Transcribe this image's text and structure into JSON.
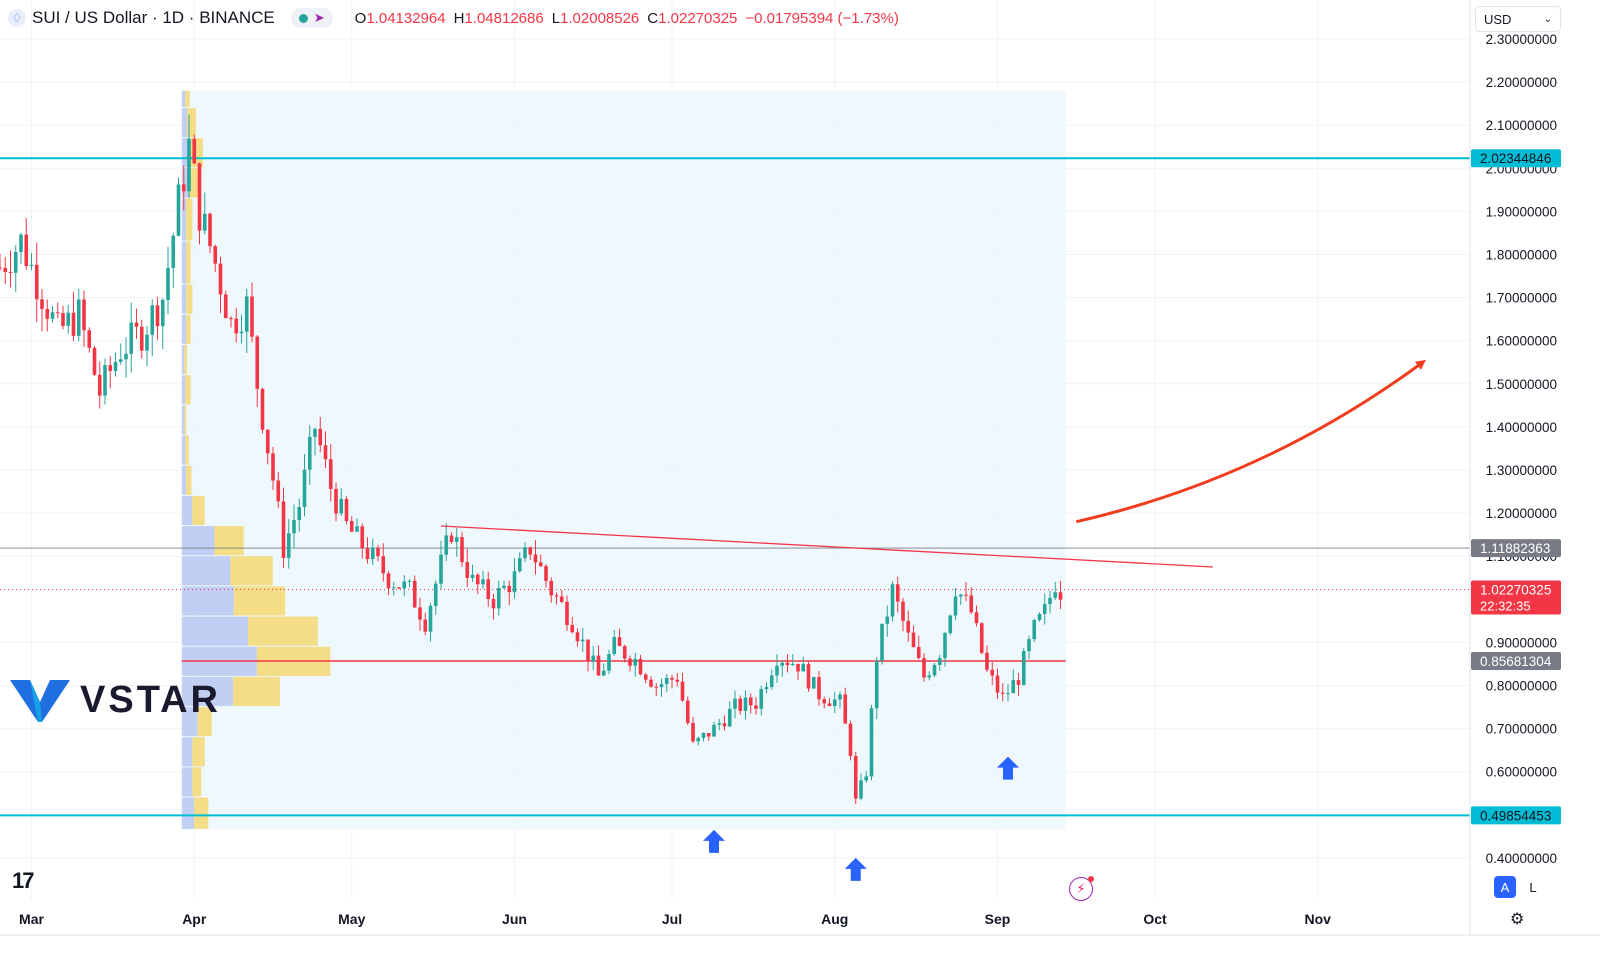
{
  "header": {
    "symbol_icon": "sui-droplet-icon",
    "symbol": "SUI / US Dollar · 1D · BINANCE",
    "o_label": "O",
    "o": "1.04132964",
    "h_label": "H",
    "h": "1.04812686",
    "l_label": "L",
    "l": "1.02008526",
    "c_label": "C",
    "c": "1.02270325",
    "change": "−0.01795394 (−1.73%)"
  },
  "currency": {
    "value": "USD",
    "icon": "chevron-down-icon"
  },
  "brand": {
    "name": "VSTAR",
    "logo_icon": "vstar-v-logo",
    "platform_icon": "tradingview-logo"
  },
  "scale_buttons": [
    "A",
    "L"
  ],
  "colors": {
    "up": "#26a69a",
    "down": "#f23645",
    "level": "#00bcd4",
    "poc": "#f23645",
    "range_bg": "#eaf5fb",
    "vp_up": "#b9c8f2",
    "vp_down": "#f4d97a",
    "arrow": "#2962ff",
    "target": "#f23c1e"
  },
  "chart_data": {
    "type": "candlestick",
    "title": "",
    "xlabel": "",
    "ylabel": "",
    "ylim": [
      0.35,
      2.32
    ],
    "price_ticks": [
      "2.30000000",
      "2.20000000",
      "2.10000000",
      "2.00000000",
      "1.90000000",
      "1.80000000",
      "1.70000000",
      "1.60000000",
      "1.50000000",
      "1.40000000",
      "1.30000000",
      "1.20000000",
      "1.10000000",
      "0.90000000",
      "0.80000000",
      "0.70000000",
      "0.60000000",
      "0.40000000"
    ],
    "tick_values": [
      2.3,
      2.2,
      2.1,
      2.0,
      1.9,
      1.8,
      1.7,
      1.6,
      1.5,
      1.4,
      1.3,
      1.2,
      1.1,
      0.9,
      0.8,
      0.7,
      0.6,
      0.4
    ],
    "months": [
      {
        "label": "Mar",
        "date": "2024-03-01"
      },
      {
        "label": "Apr",
        "date": "2024-04-01"
      },
      {
        "label": "May",
        "date": "2024-05-01"
      },
      {
        "label": "Jun",
        "date": "2024-06-01"
      },
      {
        "label": "Jul",
        "date": "2024-07-01"
      },
      {
        "label": "Aug",
        "date": "2024-08-01"
      },
      {
        "label": "Sep",
        "date": "2024-09-01"
      },
      {
        "label": "Oct",
        "date": "2024-10-01"
      },
      {
        "label": "Nov",
        "date": "2024-11-01"
      }
    ],
    "x_range": [
      "2024-02-24",
      "2024-11-30"
    ],
    "price_path": [
      [
        "2024-02-24",
        1.77
      ],
      [
        "2024-02-28",
        1.83
      ],
      [
        "2024-03-02",
        1.74
      ],
      [
        "2024-03-06",
        1.62
      ],
      [
        "2024-03-10",
        1.66
      ],
      [
        "2024-03-14",
        1.48
      ],
      [
        "2024-03-18",
        1.58
      ],
      [
        "2024-03-22",
        1.62
      ],
      [
        "2024-03-26",
        1.7
      ],
      [
        "2024-03-29",
        1.92
      ],
      [
        "2024-03-31",
        2.05
      ],
      [
        "2024-04-02",
        1.9
      ],
      [
        "2024-04-05",
        1.78
      ],
      [
        "2024-04-08",
        1.64
      ],
      [
        "2024-04-11",
        1.68
      ],
      [
        "2024-04-13",
        1.5
      ],
      [
        "2024-04-16",
        1.28
      ],
      [
        "2024-04-18",
        1.12
      ],
      [
        "2024-04-21",
        1.22
      ],
      [
        "2024-04-24",
        1.4
      ],
      [
        "2024-04-27",
        1.26
      ],
      [
        "2024-04-30",
        1.17
      ],
      [
        "2024-05-04",
        1.11
      ],
      [
        "2024-05-08",
        1.05
      ],
      [
        "2024-05-12",
        1.02
      ],
      [
        "2024-05-15",
        0.95
      ],
      [
        "2024-05-18",
        1.08
      ],
      [
        "2024-05-20",
        1.16
      ],
      [
        "2024-05-24",
        1.04
      ],
      [
        "2024-05-28",
        1.0
      ],
      [
        "2024-06-01",
        1.05
      ],
      [
        "2024-06-04",
        1.12
      ],
      [
        "2024-06-08",
        1.02
      ],
      [
        "2024-06-12",
        0.95
      ],
      [
        "2024-06-17",
        0.82
      ],
      [
        "2024-06-20",
        0.89
      ],
      [
        "2024-06-24",
        0.86
      ],
      [
        "2024-06-28",
        0.8
      ],
      [
        "2024-07-02",
        0.82
      ],
      [
        "2024-07-05",
        0.66
      ],
      [
        "2024-07-09",
        0.7
      ],
      [
        "2024-07-13",
        0.75
      ],
      [
        "2024-07-17",
        0.76
      ],
      [
        "2024-07-21",
        0.87
      ],
      [
        "2024-07-25",
        0.85
      ],
      [
        "2024-07-29",
        0.78
      ],
      [
        "2024-08-02",
        0.76
      ],
      [
        "2024-08-04",
        0.65
      ],
      [
        "2024-08-05",
        0.53
      ],
      [
        "2024-08-07",
        0.6
      ],
      [
        "2024-08-09",
        0.87
      ],
      [
        "2024-08-12",
        1.02
      ],
      [
        "2024-08-15",
        0.91
      ],
      [
        "2024-08-18",
        0.82
      ],
      [
        "2024-08-21",
        0.88
      ],
      [
        "2024-08-24",
        1.03
      ],
      [
        "2024-08-27",
        0.97
      ],
      [
        "2024-08-30",
        0.83
      ],
      [
        "2024-09-02",
        0.77
      ],
      [
        "2024-09-05",
        0.82
      ],
      [
        "2024-09-08",
        0.93
      ],
      [
        "2024-09-10",
        0.97
      ],
      [
        "2024-09-12",
        1.04
      ],
      [
        "2024-09-13",
        1.02
      ]
    ],
    "levels": [
      {
        "price": 2.02344846,
        "label": "2.02344846",
        "style": "level"
      },
      {
        "price": 1.11882363,
        "label": "1.11882363",
        "style": "thin"
      },
      {
        "price": 1.02270325,
        "label": "1.02270325",
        "sublabel": "22:32:35",
        "style": "last"
      },
      {
        "price": 0.85681304,
        "label": "0.85681304",
        "style": "poc"
      },
      {
        "price": 0.49854453,
        "label": "0.49854453",
        "style": "level"
      }
    ],
    "trendline": {
      "from": [
        "2024-05-18",
        1.17
      ],
      "to": [
        "2024-10-12",
        1.075
      ]
    },
    "range_box": {
      "from": "2024-03-30",
      "to": "2024-09-14",
      "top": 2.18,
      "bottom": 0.465
    },
    "volume_profile": {
      "bins": [
        {
          "lo": 2.14,
          "hi": 2.18,
          "up": 0.04,
          "down": 0.05
        },
        {
          "lo": 2.07,
          "hi": 2.14,
          "up": 0.06,
          "down": 0.1
        },
        {
          "lo": 2.0,
          "hi": 2.07,
          "up": 0.1,
          "down": 0.14
        },
        {
          "lo": 1.93,
          "hi": 2.0,
          "up": 0.08,
          "down": 0.12
        },
        {
          "lo": 1.83,
          "hi": 1.93,
          "up": 0.05,
          "down": 0.07
        },
        {
          "lo": 1.73,
          "hi": 1.83,
          "up": 0.05,
          "down": 0.05
        },
        {
          "lo": 1.66,
          "hi": 1.73,
          "up": 0.05,
          "down": 0.07
        },
        {
          "lo": 1.59,
          "hi": 1.66,
          "up": 0.05,
          "down": 0.05
        },
        {
          "lo": 1.52,
          "hi": 1.59,
          "up": 0.03,
          "down": 0.03
        },
        {
          "lo": 1.45,
          "hi": 1.52,
          "up": 0.04,
          "down": 0.06
        },
        {
          "lo": 1.38,
          "hi": 1.45,
          "up": 0.03,
          "down": 0.02
        },
        {
          "lo": 1.31,
          "hi": 1.38,
          "up": 0.04,
          "down": 0.04
        },
        {
          "lo": 1.24,
          "hi": 1.31,
          "up": 0.05,
          "down": 0.06
        },
        {
          "lo": 1.17,
          "hi": 1.24,
          "up": 0.12,
          "down": 0.14
        },
        {
          "lo": 1.1,
          "hi": 1.17,
          "up": 0.37,
          "down": 0.33
        },
        {
          "lo": 1.03,
          "hi": 1.1,
          "up": 0.55,
          "down": 0.48
        },
        {
          "lo": 0.96,
          "hi": 1.03,
          "up": 0.59,
          "down": 0.58
        },
        {
          "lo": 0.89,
          "hi": 0.96,
          "up": 0.75,
          "down": 0.79
        },
        {
          "lo": 0.82,
          "hi": 0.89,
          "up": 0.85,
          "down": 0.83
        },
        {
          "lo": 0.75,
          "hi": 0.82,
          "up": 0.58,
          "down": 0.53
        },
        {
          "lo": 0.68,
          "hi": 0.75,
          "up": 0.18,
          "down": 0.16
        },
        {
          "lo": 0.61,
          "hi": 0.68,
          "up": 0.12,
          "down": 0.14
        },
        {
          "lo": 0.54,
          "hi": 0.61,
          "up": 0.12,
          "down": 0.1
        },
        {
          "lo": 0.465,
          "hi": 0.54,
          "up": 0.14,
          "down": 0.16
        }
      ]
    },
    "markers": [
      {
        "date": "2024-07-09",
        "price": 0.465,
        "type": "up-arrow"
      },
      {
        "date": "2024-08-05",
        "price": 0.4,
        "type": "up-arrow"
      },
      {
        "date": "2024-09-03",
        "price": 0.635,
        "type": "up-arrow"
      }
    ],
    "projection_arrow": {
      "points": [
        [
          "2024-09-16",
          1.18
        ],
        [
          "2024-10-22",
          1.28
        ],
        [
          "2024-11-21",
          1.55
        ]
      ]
    }
  }
}
